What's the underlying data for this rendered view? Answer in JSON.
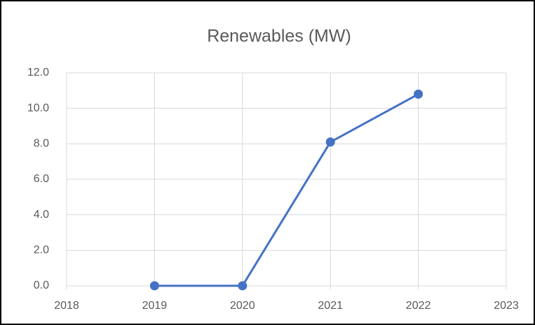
{
  "chart_data": {
    "type": "line",
    "title": "Renewables (MW)",
    "x": [
      2019,
      2020,
      2021,
      2022
    ],
    "values": [
      0,
      0,
      8.1,
      10.8
    ],
    "color": "#4472c4",
    "xlim": [
      2018,
      2023
    ],
    "xticks": [
      2018,
      2019,
      2020,
      2021,
      2022,
      2023
    ],
    "ylim": [
      0,
      12
    ],
    "yticks": [
      {
        "value": 0,
        "label": "0.0"
      },
      {
        "value": 2,
        "label": "2.0"
      },
      {
        "value": 4,
        "label": "4.0"
      },
      {
        "value": 6,
        "label": "6.0"
      },
      {
        "value": 8,
        "label": "8.0"
      },
      {
        "value": 10,
        "label": "10.0"
      },
      {
        "value": 12,
        "label": "12.0"
      }
    ],
    "grid": true
  }
}
